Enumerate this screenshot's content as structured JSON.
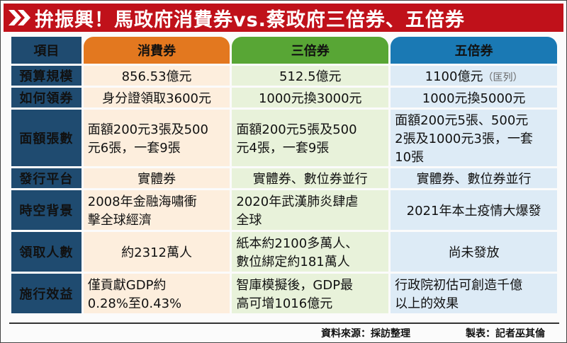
{
  "title": "拚振興！馬政府消費券vs.蔡政府三倍券、五倍券",
  "colors": {
    "banner": "#c0111a",
    "label": "#1f4b70",
    "col_a": "#e3781f",
    "col_b": "#58a635",
    "col_c": "#1a79b4"
  },
  "header": {
    "item": "項目",
    "a": "消費券",
    "b": "三倍券",
    "c": "五倍券"
  },
  "rows": {
    "budget": {
      "label": "預算規模",
      "a": "856.53億元",
      "b": "512.5億元",
      "c": "1100億元",
      "c_note": "（匡列）"
    },
    "collect": {
      "label": "如何領券",
      "a": "身分證領取3600元",
      "b": "1000元換3000元",
      "c": "1000元換5000元"
    },
    "denom": {
      "label": "面額張數",
      "a": [
        "面額200元3張及500",
        "元6張，一套9張"
      ],
      "b": [
        "面額200元5張及500",
        "元4張，一套9張"
      ],
      "c": [
        "面額200元5張、500元",
        "2張及1000元3張，一套",
        "10張"
      ]
    },
    "platform": {
      "label": "發行平台",
      "a": "實體券",
      "b": "實體券、數位券並行",
      "c": "實體券、數位券並行"
    },
    "background": {
      "label": "時空背景",
      "a": [
        "2008年金融海嘯衝",
        "擊全球經濟"
      ],
      "b": [
        "2020年武漢肺炎肆虐",
        "全球"
      ],
      "c": "2021年本土疫情大爆發"
    },
    "people": {
      "label": "領取人數",
      "a": "約2312萬人",
      "b": [
        "紙本約2100多萬人、",
        "數位綁定約181萬人"
      ],
      "c": "尚未發放"
    },
    "effect": {
      "label": "施行效益",
      "a": [
        "僅貢獻GDP約",
        "0.28%至0.43%"
      ],
      "b": [
        "智庫模擬後，GDP最",
        "高可增1016億元"
      ],
      "c": [
        "行政院初估可創造千億",
        "以上的效果"
      ]
    }
  },
  "footer": {
    "source": "資料來源：採訪整理",
    "maker": "製表：記者巫其倫"
  }
}
